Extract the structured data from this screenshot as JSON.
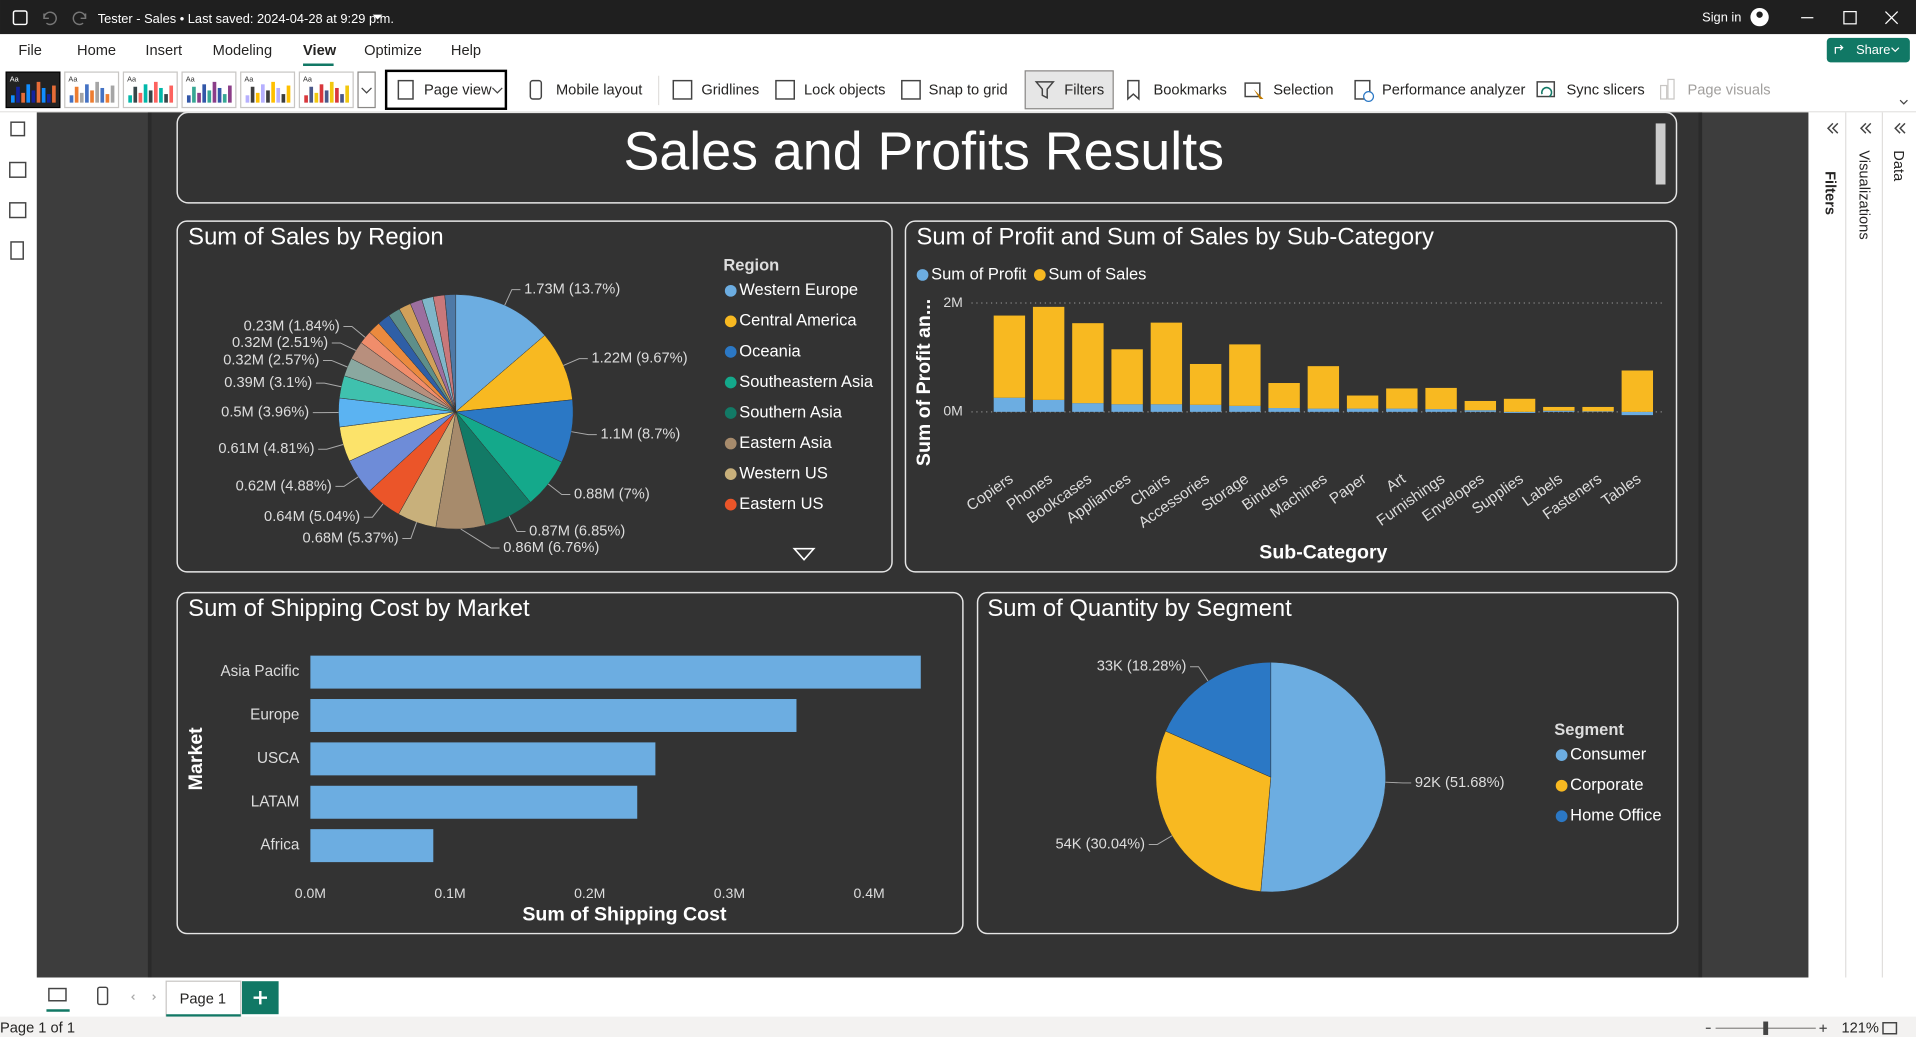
{
  "window": {
    "title": "Tester - Sales • Last saved: 2024-04-28 at 9:29 p.m.",
    "sign_in": "Sign in"
  },
  "menu": [
    "File",
    "Home",
    "Insert",
    "Modeling",
    "View",
    "Optimize",
    "Help"
  ],
  "share": "Share",
  "ribbon": {
    "theme_thumbnail_label": "Aa",
    "page_view": "Page view",
    "buttons": [
      "Mobile layout",
      "Gridlines",
      "Lock objects",
      "Snap to grid",
      "Filters",
      "Bookmarks",
      "Selection",
      "Performance analyzer",
      "Sync slicers",
      "Page visuals"
    ]
  },
  "panes": [
    "Filters",
    "Visualizations",
    "Data"
  ],
  "report_title": "Sales and Profits Results",
  "chart_data": [
    {
      "type": "pie",
      "title": "Sum of Sales by Region",
      "legend_title": "Region",
      "legend": "right",
      "categories": [
        "Western Europe",
        "Central America",
        "Oceania",
        "Southeastern Asia",
        "Southern Asia",
        "Eastern Asia",
        "Western US",
        "Eastern US",
        null,
        null,
        null,
        null,
        null,
        null,
        null,
        null,
        null,
        null,
        null,
        null,
        null,
        null,
        null
      ],
      "values": [
        1.73,
        1.22,
        1.1,
        0.88,
        0.87,
        0.86,
        0.68,
        0.64,
        0.62,
        0.61,
        0.5,
        0.39,
        0.32,
        0.32,
        0.23,
        0.22,
        0.22,
        0.21,
        0.21,
        0.21,
        0.2,
        0.2,
        0.19
      ],
      "value_labels": [
        "1.73M (13.7%)",
        "1.22M (9.67%)",
        "1.1M (8.7%)",
        "0.88M (7%)",
        "0.87M (6.85%)",
        "0.86M (6.76%)",
        "0.68M (5.37%)",
        "0.64M (5.04%)",
        "0.62M (4.88%)",
        "0.61M (4.81%)",
        "0.5M (3.96%)",
        "0.39M (3.1%)",
        "0.32M (2.57%)",
        "0.32M (2.51%)",
        "0.23M (1.84%)",
        null,
        null,
        null,
        null,
        null,
        null,
        null,
        null
      ],
      "colors": [
        "#6CADE1",
        "#F8B921",
        "#2B78C5",
        "#14A98B",
        "#127A66",
        "#A78B6C",
        "#C8B07B",
        "#EB5529",
        "#6E8CD8",
        "#FCE36A",
        "#5BB3F2",
        "#3FC1AE",
        "#8AA8A0",
        "#B88F7D",
        "#F08D6B",
        "#EB8A3E",
        "#2F5FA6",
        "#5E8F8A",
        "#D1A05A",
        "#9C6F9F",
        "#7FB6C9",
        "#C9787A",
        "#4E79A7"
      ]
    },
    {
      "type": "stacked_bar",
      "title": "Sum of Profit and Sum of Sales by Sub-Category",
      "legend": "top-left",
      "xlabel": "Sub-Category",
      "ylabel": "Sum of Profit an...",
      "categories": [
        "Copiers",
        "Phones",
        "Bookcases",
        "Appliances",
        "Chairs",
        "Accessories",
        "Storage",
        "Binders",
        "Machines",
        "Paper",
        "Art",
        "Furnishings",
        "Envelopes",
        "Supplies",
        "Labels",
        "Fasteners",
        "Tables"
      ],
      "series": [
        {
          "name": "Sum of Profit",
          "color": "#6CADE1",
          "values": [
            0.26,
            0.22,
            0.16,
            0.14,
            0.14,
            0.13,
            0.11,
            0.07,
            0.06,
            0.06,
            0.06,
            0.05,
            0.03,
            -0.02,
            0.02,
            0.01,
            -0.06
          ]
        },
        {
          "name": "Sum of Sales",
          "color": "#F8B921",
          "values": [
            1.51,
            1.71,
            1.47,
            1.01,
            1.5,
            0.75,
            1.13,
            0.46,
            0.78,
            0.24,
            0.37,
            0.39,
            0.17,
            0.24,
            0.07,
            0.08,
            0.76
          ]
        }
      ],
      "ylim": [
        -0.1,
        2.2
      ],
      "yticks": [
        {
          "value": 0,
          "label": "0M"
        },
        {
          "value": 2,
          "label": "2M"
        }
      ],
      "grid": true
    },
    {
      "type": "hbar",
      "title": "Sum of Shipping Cost by Market",
      "xlabel": "Sum of Shipping Cost",
      "ylabel": "Market",
      "categories": [
        "Asia Pacific",
        "Europe",
        "USCA",
        "LATAM",
        "Africa"
      ],
      "values": [
        0.437,
        0.348,
        0.247,
        0.234,
        0.088
      ],
      "color": "#6CADE1",
      "xlim": [
        0,
        0.45
      ],
      "xticks": [
        {
          "value": 0,
          "label": "0.0M"
        },
        {
          "value": 0.1,
          "label": "0.1M"
        },
        {
          "value": 0.2,
          "label": "0.2M"
        },
        {
          "value": 0.3,
          "label": "0.3M"
        },
        {
          "value": 0.4,
          "label": "0.4M"
        }
      ],
      "grid": false
    },
    {
      "type": "pie",
      "title": "Sum of Quantity by Segment",
      "legend_title": "Segment",
      "legend": "right",
      "categories": [
        "Consumer",
        "Corporate",
        "Home Office"
      ],
      "values": [
        92,
        54,
        33
      ],
      "value_labels": [
        "92K (51.68%)",
        "54K (30.04%)",
        "33K (18.28%)"
      ],
      "colors": [
        "#6CADE1",
        "#F8B921",
        "#2B78C5"
      ]
    }
  ],
  "page_tabs": [
    "Page 1"
  ],
  "status": {
    "page": "Page 1 of 1",
    "zoom": "121%"
  }
}
